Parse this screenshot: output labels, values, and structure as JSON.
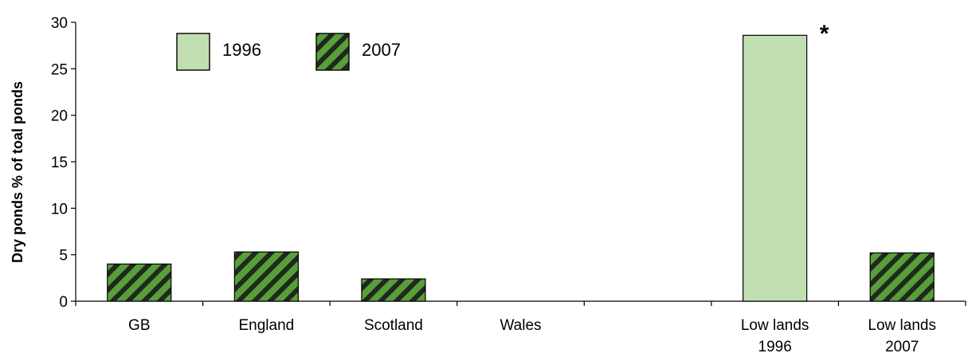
{
  "chart_data": {
    "type": "bar",
    "ylabel": "Dry ponds % of toal ponds",
    "xlabel": "",
    "ylim": [
      0,
      30
    ],
    "yticks": [
      0,
      5,
      10,
      15,
      20,
      25,
      30
    ],
    "categories": [
      [
        "GB"
      ],
      [
        "England"
      ],
      [
        "Scotland"
      ],
      [
        "Wales"
      ],
      [
        ""
      ],
      [
        "Low lands",
        "1996"
      ],
      [
        "Low lands",
        "2007"
      ]
    ],
    "series": [
      {
        "name": "1996",
        "values": [
          null,
          null,
          null,
          null,
          null,
          28.6,
          null
        ],
        "fill": "#c1dfb0",
        "pattern": "solid"
      },
      {
        "name": "2007",
        "values": [
          4.0,
          5.3,
          2.4,
          0,
          null,
          null,
          5.2
        ],
        "fill": "#5a9e3a",
        "stripe": "#1e2a1e",
        "pattern": "diagonal-stripes"
      }
    ],
    "legend_position": "top-left",
    "annotations": [
      {
        "text": "*",
        "category_index": 5
      }
    ],
    "grid": false,
    "colors": {
      "axis": "#000000",
      "bar_outline": "#000000"
    }
  }
}
